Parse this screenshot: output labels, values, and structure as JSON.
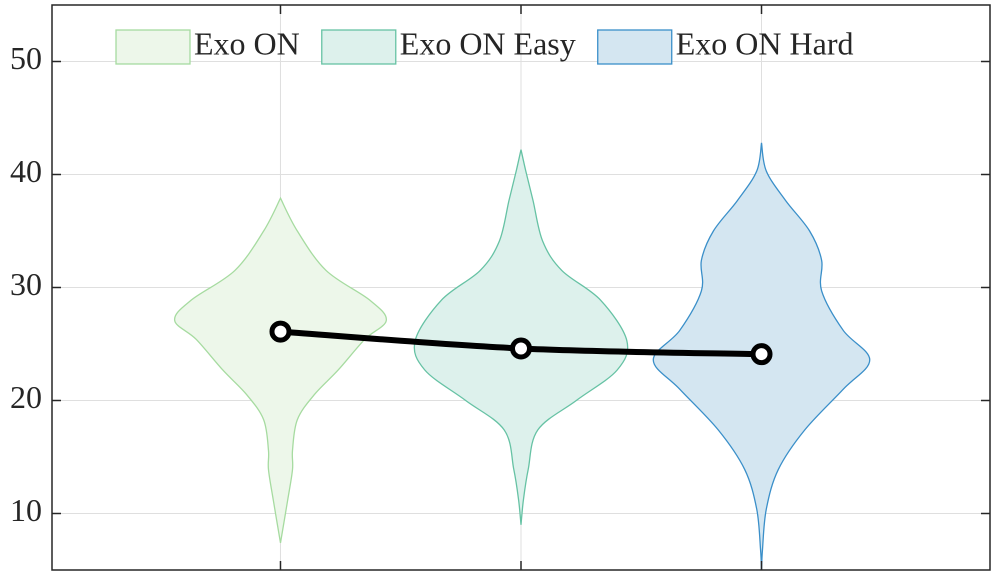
{
  "chart_data": {
    "type": "violin",
    "x": [
      1,
      2,
      3
    ],
    "categories": [
      null,
      null,
      null
    ],
    "xlim": [
      0.05,
      3.95
    ],
    "xticks": [
      1,
      2,
      3
    ],
    "ylim": [
      5,
      55
    ],
    "yticks": [
      10,
      20,
      30,
      40,
      50
    ],
    "grid": true,
    "legend": "top",
    "series": [
      {
        "name": "Exo ON",
        "color": "#a6dba0",
        "fill": "#edf7ea",
        "y": [
          37.9,
          35,
          31.5,
          28.9,
          27.1,
          25.4,
          22.7,
          20.5,
          18.3,
          15.6,
          13.9,
          11.2,
          7.4
        ],
        "width": [
          0,
          0.07,
          0.19,
          0.37,
          0.44,
          0.35,
          0.24,
          0.14,
          0.07,
          0.05,
          0.05,
          0.03,
          0
        ]
      },
      {
        "name": "Exo ON Easy",
        "color": "#66c2a4",
        "fill": "#ddf1ec",
        "y": [
          42.2,
          40.3,
          37.7,
          34.1,
          31.5,
          28.9,
          25.3,
          22.7,
          20,
          17.4,
          13.9,
          11.2,
          9
        ],
        "width": [
          0,
          0.02,
          0.05,
          0.09,
          0.17,
          0.33,
          0.44,
          0.4,
          0.23,
          0.07,
          0.03,
          0.01,
          0
        ]
      },
      {
        "name": "Exo ON Hard",
        "color": "#3a8fc9",
        "fill": "#d4e6f1",
        "y": [
          42.8,
          40.3,
          37.7,
          35,
          32.4,
          29.7,
          26.2,
          23.6,
          21,
          17.4,
          13.9,
          10.4,
          6.8,
          5
        ],
        "width": [
          0,
          0.02,
          0.1,
          0.2,
          0.25,
          0.25,
          0.34,
          0.45,
          0.34,
          0.18,
          0.07,
          0.02,
          0.004,
          0
        ]
      }
    ],
    "line": {
      "values": [
        26.1,
        24.6,
        24.1
      ],
      "color": "#000000"
    }
  }
}
